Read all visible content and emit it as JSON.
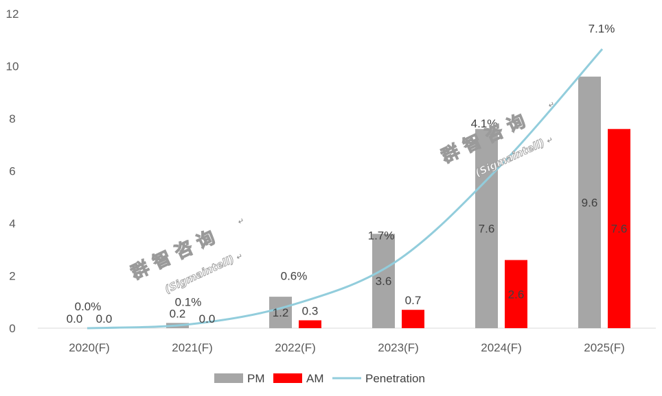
{
  "chart_data": {
    "type": "bar",
    "categories": [
      "2020(F)",
      "2021(F)",
      "2022(F)",
      "2023(F)",
      "2024(F)",
      "2025(F)"
    ],
    "ylim": [
      0,
      12
    ],
    "yticks": [
      0,
      2,
      4,
      6,
      8,
      10,
      12
    ],
    "grid": false,
    "legend_position": "bottom",
    "series": [
      {
        "name": "PM",
        "kind": "bar",
        "color": "#a6a6a6",
        "values": [
          0.0,
          0.2,
          1.2,
          3.6,
          7.6,
          9.6
        ],
        "labels": [
          "0.0",
          "0.2",
          "1.2",
          "3.6",
          "7.6",
          "9.6"
        ]
      },
      {
        "name": "AM",
        "kind": "bar",
        "color": "#ff0000",
        "values": [
          0.0,
          0.0,
          0.3,
          0.7,
          2.6,
          7.6
        ],
        "labels": [
          "0.0",
          "0.0",
          "0.3",
          "0.7",
          "2.6",
          "7.6"
        ]
      },
      {
        "name": "Penetration",
        "kind": "line",
        "color": "#92cddc",
        "values": [
          0.0,
          0.1,
          0.6,
          1.7,
          4.1,
          7.1
        ],
        "labels": [
          "0.0%",
          "0.1%",
          "0.6%",
          "1.7%",
          "4.1%",
          "7.1%"
        ]
      }
    ]
  },
  "watermark": {
    "title": "群 智 咨 询",
    "subtitle": "(Sigmaintell)",
    "mark": "↵"
  }
}
